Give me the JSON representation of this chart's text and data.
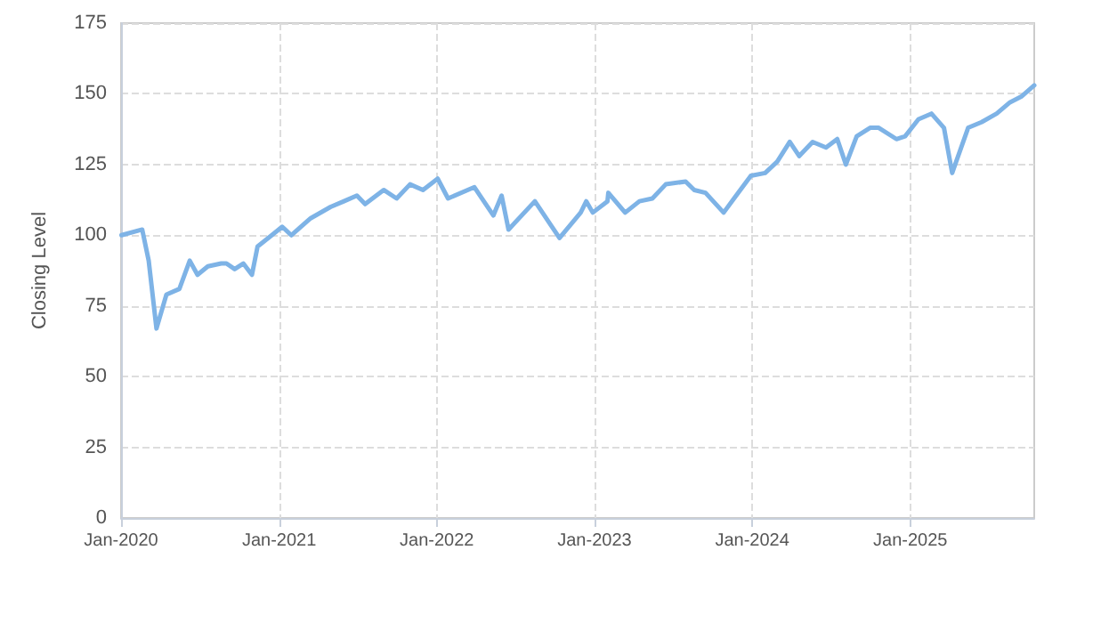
{
  "chart_data": {
    "type": "line",
    "ylabel": "Closing Level",
    "x": [
      "2020-01-02",
      "2020-02-19",
      "2020-03-05",
      "2020-03-23",
      "2020-04-15",
      "2020-05-15",
      "2020-06-08",
      "2020-06-26",
      "2020-07-20",
      "2020-08-20",
      "2020-09-01",
      "2020-09-20",
      "2020-10-10",
      "2020-10-30",
      "2020-11-12",
      "2020-12-15",
      "2021-01-08",
      "2021-01-29",
      "2021-03-15",
      "2021-04-30",
      "2021-05-31",
      "2021-06-30",
      "2021-07-19",
      "2021-08-31",
      "2021-09-30",
      "2021-10-31",
      "2021-11-30",
      "2022-01-03",
      "2022-01-27",
      "2022-03-29",
      "2022-05-12",
      "2022-05-31",
      "2022-06-16",
      "2022-08-16",
      "2022-10-12",
      "2022-11-30",
      "2022-12-13",
      "2022-12-28",
      "2023-01-31",
      "2023-02-02",
      "2023-03-13",
      "2023-04-15",
      "2023-05-15",
      "2023-06-15",
      "2023-07-31",
      "2023-08-20",
      "2023-09-15",
      "2023-10-27",
      "2023-11-20",
      "2023-12-29",
      "2024-01-31",
      "2024-02-28",
      "2024-03-28",
      "2024-04-19",
      "2024-05-20",
      "2024-06-20",
      "2024-07-16",
      "2024-08-05",
      "2024-08-30",
      "2024-09-30",
      "2024-10-20",
      "2024-11-30",
      "2024-12-20",
      "2025-01-20",
      "2025-02-19",
      "2025-03-20",
      "2025-04-08",
      "2025-05-15",
      "2025-06-15",
      "2025-07-20",
      "2025-08-20",
      "2025-09-15",
      "2025-10-15"
    ],
    "series": [
      {
        "color": "#7eb3e6",
        "values": [
          100,
          102,
          91,
          67,
          79,
          81,
          91,
          86,
          89,
          90,
          90,
          88,
          90,
          86,
          96,
          100,
          103,
          100,
          106,
          110,
          112,
          114,
          111,
          116,
          113,
          118,
          116,
          120,
          113,
          117,
          107,
          114,
          102,
          112,
          99,
          108,
          112,
          108,
          112,
          115,
          108,
          112,
          113,
          118,
          119,
          116,
          115,
          108,
          113,
          121,
          122,
          126,
          133,
          128,
          133,
          131,
          134,
          125,
          135,
          138,
          138,
          134,
          135,
          141,
          143,
          138,
          122,
          138,
          140,
          143,
          147,
          149,
          153
        ]
      }
    ],
    "xlim": [
      "2020-01-01",
      "2025-10-15"
    ],
    "xticks": [
      {
        "value": "2020-01-01",
        "label": "Jan-2020"
      },
      {
        "value": "2021-01-01",
        "label": "Jan-2021"
      },
      {
        "value": "2022-01-01",
        "label": "Jan-2022"
      },
      {
        "value": "2023-01-01",
        "label": "Jan-2023"
      },
      {
        "value": "2024-01-01",
        "label": "Jan-2024"
      },
      {
        "value": "2025-01-01",
        "label": "Jan-2025"
      }
    ],
    "ylim": [
      0,
      175
    ],
    "yticks": [
      0,
      25,
      50,
      75,
      100,
      125,
      150,
      175
    ],
    "grid": true,
    "marker": "none",
    "line_style": "solid"
  }
}
